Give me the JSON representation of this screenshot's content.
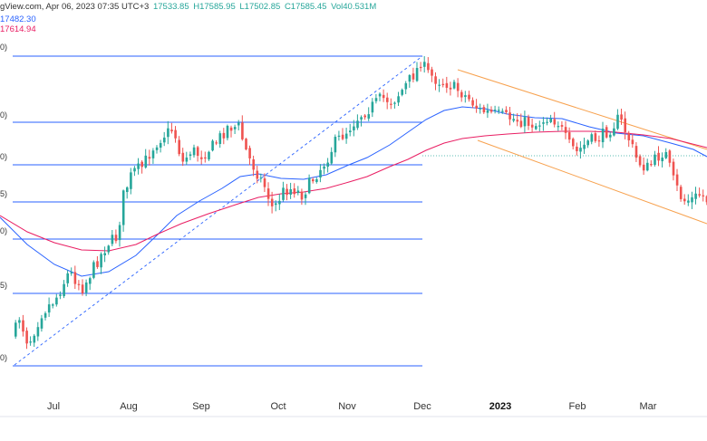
{
  "header": {
    "line1_prefix": "gView.com, Apr 06, 2023 07:35 UTC+3",
    "open": "17533.85",
    "high": "H17585.95",
    "low": "L17502.85",
    "close": "C17585.45",
    "vol": "Vol40.531M",
    "ma_blue": "17482.30",
    "ma_red": "17614.94"
  },
  "colors": {
    "up": "#26a69a",
    "down": "#ef5350",
    "ma_fast": "#2962ff",
    "ma_slow": "#e91e63",
    "fib": "#2962ff",
    "channel": "#f7a14e",
    "trend": "#2962ff"
  },
  "chart_data": {
    "type": "candlestick",
    "x_ticks": [
      "Jul",
      "Aug",
      "Sep",
      "Oct",
      "Nov",
      "Dec",
      "2023",
      "Feb",
      "Mar"
    ],
    "fib_labels": [
      "0)",
      "0)",
      "0)",
      "5)",
      "0)",
      "5)",
      "0)"
    ],
    "grid": false,
    "price_range": [
      15150,
      18950
    ],
    "closes_approx": [
      15520,
      15760,
      16020,
      16150,
      16050,
      16200,
      16620,
      16980,
      17480,
      17700,
      17720,
      17790,
      17490,
      17860,
      17710,
      17560,
      17820,
      17720,
      18100,
      18240,
      18370,
      18420,
      18540,
      18780,
      18680,
      18560,
      18310,
      18150,
      18070,
      18140,
      18130,
      18050,
      17990,
      17830,
      17800,
      17870,
      17930,
      17640,
      17780,
      17520,
      17450,
      17380,
      17490
    ]
  }
}
